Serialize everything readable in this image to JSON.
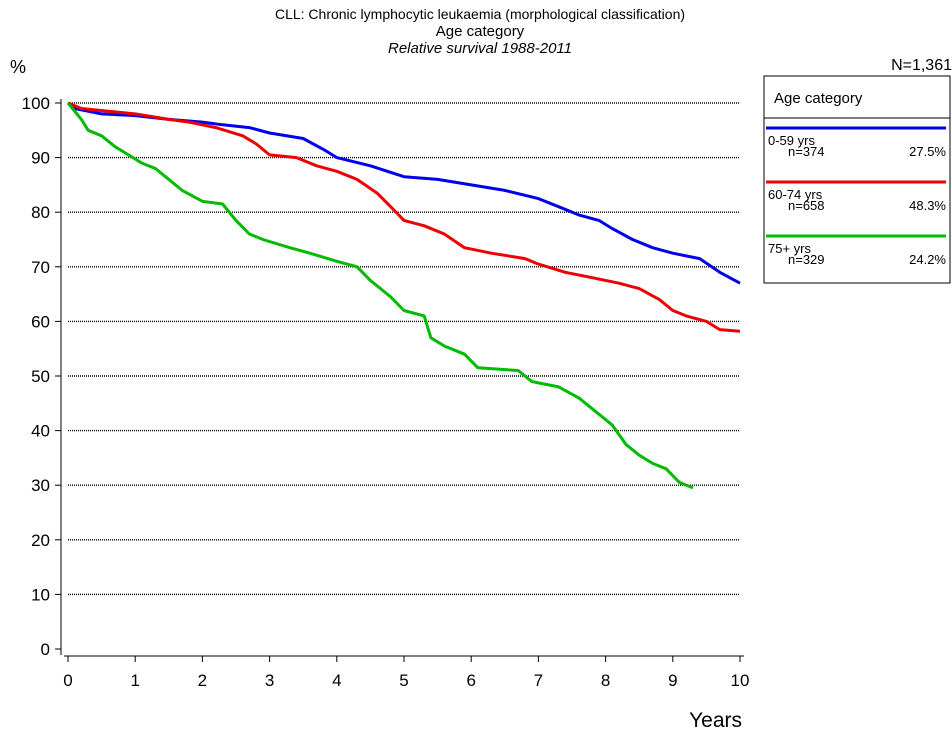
{
  "chart_data": {
    "type": "line",
    "title": "CLL: Chronic lymphocytic leukaemia (morphological classification)",
    "subtitle": "Age category",
    "subtitle2": "Relative survival 1988-2011",
    "ylabel": "%",
    "xlabel": "Years",
    "total_label": "N=1,361",
    "legend_title": "Age category",
    "legend_position": "upper right",
    "xlim": [
      0,
      10
    ],
    "xticks": [
      0,
      1,
      2,
      3,
      4,
      5,
      6,
      7,
      8,
      9,
      10
    ],
    "ylim": [
      0,
      100
    ],
    "yticks": [
      0,
      10,
      20,
      30,
      40,
      50,
      60,
      70,
      80,
      90,
      100
    ],
    "grid": true,
    "series": [
      {
        "name": "0-59 yrs",
        "n_label": "n=374",
        "share_label": "27.5%",
        "color": "#0000ee",
        "x": [
          0,
          0.1,
          0.5,
          1,
          1.5,
          2,
          2.3,
          2.7,
          3,
          3.5,
          3.8,
          4,
          4.5,
          5,
          5.5,
          6,
          6.5,
          7,
          7.3,
          7.6,
          7.9,
          8.1,
          8.4,
          8.7,
          9,
          9.4,
          9.7,
          10
        ],
        "values": [
          100,
          99,
          98,
          97.7,
          97,
          96.5,
          96,
          95.5,
          94.5,
          93.5,
          91.5,
          90,
          88.5,
          86.5,
          86,
          85,
          84,
          82.5,
          81,
          79.5,
          78.5,
          77,
          75,
          73.5,
          72.5,
          71.5,
          69,
          67
        ]
      },
      {
        "name": "60-74 yrs",
        "n_label": "n=658",
        "share_label": "48.3%",
        "color": "#ee0000",
        "x": [
          0,
          0.2,
          0.6,
          1,
          1.5,
          1.8,
          2.2,
          2.6,
          2.8,
          3,
          3.4,
          3.7,
          4,
          4.3,
          4.6,
          4.8,
          5,
          5.3,
          5.6,
          5.9,
          6.3,
          6.8,
          7,
          7.4,
          7.8,
          8.2,
          8.5,
          8.8,
          9,
          9.2,
          9.5,
          9.7,
          10
        ],
        "values": [
          100,
          99,
          98.5,
          98,
          97,
          96.5,
          95.5,
          94,
          92.5,
          90.5,
          90,
          88.5,
          87.5,
          86,
          83.5,
          81,
          78.5,
          77.5,
          76,
          73.5,
          72.5,
          71.5,
          70.5,
          69,
          68,
          67,
          66,
          64,
          62,
          61,
          60,
          58.5,
          58.2
        ]
      },
      {
        "name": "75+ yrs",
        "n_label": "n=329",
        "share_label": "24.2%",
        "color": "#00bb00",
        "x": [
          0,
          0.2,
          0.3,
          0.5,
          0.7,
          0.9,
          1.1,
          1.3,
          1.5,
          1.7,
          2,
          2.3,
          2.5,
          2.7,
          2.9,
          3.3,
          3.6,
          4,
          4.3,
          4.5,
          4.8,
          5,
          5.3,
          5.4,
          5.6,
          5.9,
          6.1,
          6.7,
          6.9,
          7.3,
          7.6,
          7.9,
          8.1,
          8.3,
          8.5,
          8.7,
          8.9,
          9.1,
          9.3
        ],
        "values": [
          100,
          97,
          95,
          94,
          92,
          90.5,
          89,
          88,
          86,
          84,
          82,
          81.5,
          78.5,
          76,
          75,
          73.5,
          72.5,
          71,
          70,
          67.5,
          64.5,
          62,
          61,
          57,
          55.5,
          54,
          51.5,
          51,
          49,
          48,
          46,
          43,
          41,
          37.5,
          35.5,
          34,
          33,
          30.5,
          29.5
        ]
      }
    ]
  }
}
